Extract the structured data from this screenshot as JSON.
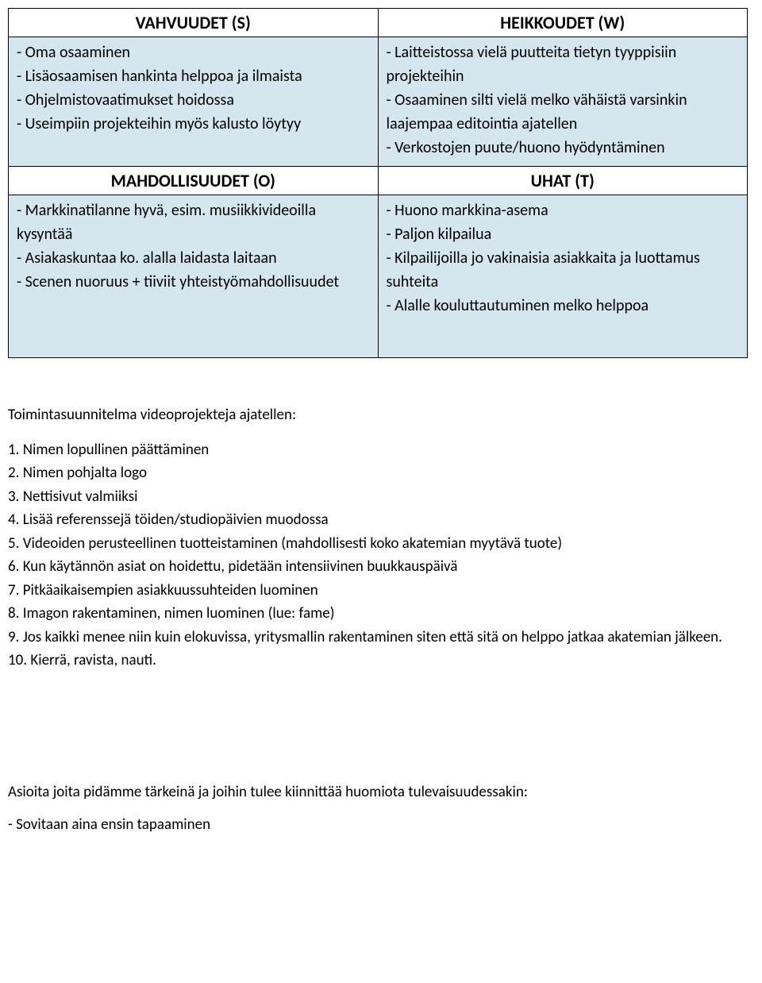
{
  "swot": {
    "header_bg": "#ffffff",
    "body_bg": "#d5e7ee",
    "text_color": "#000000",
    "font_family": "Calibri, Arial, sans-serif",
    "header_fontsize": 22,
    "body_fontsize": 20,
    "quadrants": {
      "strengths": {
        "title": "VAHVUUDET (S)",
        "items": [
          "- Oma osaaminen",
          "- Lisäosaamisen hankinta helppoa ja ilmaista",
          "- Ohjelmistovaatimukset hoidossa",
          "- Useimpiin projekteihin myös kalusto löytyy"
        ]
      },
      "weaknesses": {
        "title": "HEIKKOUDET (W)",
        "items": [
          "- Laitteistossa vielä puutteita tietyn tyyppisiin projekteihin",
          "- Osaaminen silti vielä melko vähäistä varsinkin laajempaa editointia ajatellen",
          "- Verkostojen puute/huono hyödyntäminen"
        ]
      },
      "opportunities": {
        "title": "MAHDOLLISUUDET (O)",
        "items": [
          "- Markkinatilanne hyvä, esim. musiikkivideoilla kysyntää",
          "- Asiakaskuntaa ko. alalla laidasta laitaan",
          "- Scenen nuoruus + tiiviit yhteistyömahdollisuudet"
        ]
      },
      "threats": {
        "title": "UHAT (T)",
        "items": [
          "- Huono markkina-asema",
          "- Paljon kilpailua",
          "- Kilpailijoilla jo vakinaisia asiakkaita ja luottamus suhteita",
          "- Alalle kouluttautuminen melko helppoa"
        ]
      }
    }
  },
  "plan": {
    "intro": "Toimintasuunnitelma videoprojekteja ajatellen:",
    "items": [
      "1. Nimen lopullinen päättäminen",
      "2. Nimen pohjalta logo",
      "3. Nettisivut valmiiksi",
      "4. Lisää referenssejä töiden/studiopäivien muodossa",
      "5. Videoiden perusteellinen tuotteistaminen (mahdollisesti koko akatemian myytävä tuote)",
      "6. Kun käytännön asiat on hoidettu, pidetään intensiivinen buukkauspäivä",
      "7. Pitkäaikaisempien asiakkuussuhteiden luominen",
      "8. Imagon rakentaminen, nimen luominen (lue: fame)",
      "9. Jos kaikki menee niin kuin elokuvissa, yritysmallin rakentaminen siten että sitä on helppo jatkaa akatemian jälkeen.",
      "10. Kierrä, ravista, nauti."
    ]
  },
  "important": {
    "heading": "Asioita joita pidämme tärkeinä ja joihin tulee kiinnittää huomiota tulevaisuudessakin:",
    "items": [
      "- Sovitaan aina ensin tapaaminen"
    ]
  }
}
